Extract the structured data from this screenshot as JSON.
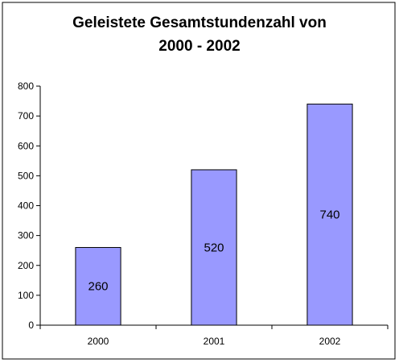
{
  "chart_data": {
    "type": "bar",
    "title": "Geleistete Gesamtstundenzahl von 2000 - 2002",
    "title_lines": [
      "Geleistete Gesamtstundenzahl von",
      "2000 - 2002"
    ],
    "categories": [
      "2000",
      "2001",
      "2002"
    ],
    "values": [
      260,
      520,
      740
    ],
    "data_labels": [
      "260",
      "520",
      "740"
    ],
    "yticks": [
      0,
      100,
      200,
      300,
      400,
      500,
      600,
      700,
      800
    ],
    "ytick_labels": [
      "0",
      "100",
      "200",
      "300",
      "400",
      "500",
      "600",
      "700",
      "800"
    ],
    "ylim": [
      0,
      800
    ],
    "xlabel": "",
    "ylabel": "",
    "grid": false,
    "legend": false,
    "colors": {
      "bar": "#9999ff",
      "bar_edge": "#000000",
      "axis": "#000000",
      "frame": "#000000"
    }
  }
}
